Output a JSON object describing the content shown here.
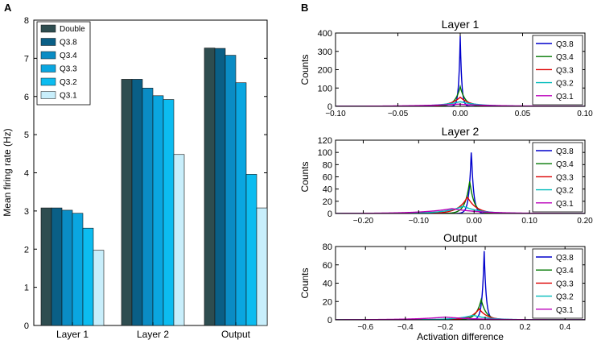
{
  "colors": {
    "bars": [
      "#2e4d50",
      "#0a5f86",
      "#0a8cc4",
      "#0aa6e0",
      "#0cbcf0",
      "#c8eefb"
    ],
    "lines": [
      "#0000cc",
      "#007700",
      "#dd0000",
      "#00bbbb",
      "#bb00bb"
    ]
  },
  "chart_data": [
    {
      "id": "A",
      "panel_label": "A",
      "type": "bar",
      "title": "",
      "xlabel": "",
      "ylabel": "Mean firing rate (Hz)",
      "ylim": [
        0,
        8
      ],
      "yticks": [
        "0",
        "1",
        "2",
        "3",
        "4",
        "5",
        "6",
        "7",
        "8"
      ],
      "categories": [
        "Layer 1",
        "Layer 2",
        "Output"
      ],
      "legend_position": "top-left",
      "series": [
        {
          "name": "Double",
          "values": [
            3.08,
            6.45,
            7.27
          ]
        },
        {
          "name": "Q3.8",
          "values": [
            3.08,
            6.45,
            7.26
          ]
        },
        {
          "name": "Q3.4",
          "values": [
            3.02,
            6.22,
            7.08
          ]
        },
        {
          "name": "Q3.3",
          "values": [
            2.94,
            6.02,
            6.36
          ]
        },
        {
          "name": "Q3.2",
          "values": [
            2.55,
            5.92,
            3.96
          ]
        },
        {
          "name": "Q3.1",
          "values": [
            1.97,
            4.48,
            3.08
          ]
        }
      ]
    },
    {
      "id": "B1",
      "panel_label": "B",
      "type": "line",
      "title": "Layer 1",
      "xlabel": "",
      "ylabel": "Counts",
      "xlim": [
        -0.1,
        0.1
      ],
      "ylim": [
        0,
        400
      ],
      "xticks": [
        -0.1,
        -0.05,
        0,
        0.05,
        0.1
      ],
      "xtick_labels": [
        "−0.10",
        "−0.05",
        "0.00",
        "0.05",
        "0.10"
      ],
      "yticks": [
        0,
        100,
        200,
        300,
        400
      ],
      "ytick_labels": [
        "0",
        "100",
        "200",
        "300",
        "400"
      ],
      "legend_position": "top-right",
      "series": [
        {
          "name": "Q3.8",
          "center": 0.0,
          "peak": 385,
          "width": 0.0012
        },
        {
          "name": "Q3.4",
          "center": 0.0,
          "peak": 108,
          "width": 0.004
        },
        {
          "name": "Q3.3",
          "center": 0.0,
          "peak": 50,
          "width": 0.008
        },
        {
          "name": "Q3.2",
          "center": 0.0,
          "peak": 25,
          "width": 0.016
        },
        {
          "name": "Q3.1",
          "center": -0.002,
          "peak": 12,
          "width": 0.03
        }
      ]
    },
    {
      "id": "B2",
      "panel_label": "",
      "type": "line",
      "title": "Layer 2",
      "xlabel": "",
      "ylabel": "Counts",
      "xlim": [
        -0.25,
        0.2
      ],
      "ylim": [
        0,
        120
      ],
      "xticks": [
        -0.2,
        -0.1,
        0,
        0.1,
        0.2
      ],
      "xtick_labels": [
        "−0.20",
        "−0.10",
        "0.00",
        "0.10",
        "0.20"
      ],
      "yticks": [
        0,
        20,
        40,
        60,
        80,
        100,
        120
      ],
      "ytick_labels": [
        "0",
        "20",
        "40",
        "60",
        "80",
        "100",
        "120"
      ],
      "legend_position": "top-right",
      "series": [
        {
          "name": "Q3.8",
          "center": -0.005,
          "peak": 105,
          "width": 0.004
        },
        {
          "name": "Q3.4",
          "center": -0.008,
          "peak": 53,
          "width": 0.008
        },
        {
          "name": "Q3.3",
          "center": -0.012,
          "peak": 27,
          "width": 0.016
        },
        {
          "name": "Q3.2",
          "center": -0.02,
          "peak": 12,
          "width": 0.03
        },
        {
          "name": "Q3.1",
          "center": -0.04,
          "peak": 8,
          "width": 0.05
        }
      ]
    },
    {
      "id": "B3",
      "panel_label": "",
      "type": "line",
      "title": "Output",
      "xlabel": "Activation difference",
      "ylabel": "Counts",
      "xlim": [
        -0.75,
        0.5
      ],
      "ylim": [
        0,
        80
      ],
      "xticks": [
        -0.6,
        -0.4,
        -0.2,
        0,
        0.2,
        0.4
      ],
      "xtick_labels": [
        "−0.6",
        "−0.4",
        "−0.2",
        "0.0",
        "0.2",
        "0.4"
      ],
      "yticks": [
        0,
        20,
        40,
        60,
        80
      ],
      "ytick_labels": [
        "0",
        "20",
        "40",
        "60",
        "80"
      ],
      "legend_position": "top-right",
      "series": [
        {
          "name": "Q3.8",
          "center": -0.005,
          "peak": 75,
          "width": 0.01
        },
        {
          "name": "Q3.4",
          "center": -0.02,
          "peak": 22,
          "width": 0.025
        },
        {
          "name": "Q3.3",
          "center": -0.03,
          "peak": 12,
          "width": 0.04
        },
        {
          "name": "Q3.2",
          "center": -0.06,
          "peak": 5,
          "width": 0.08
        },
        {
          "name": "Q3.1",
          "center": -0.2,
          "peak": 3,
          "width": 0.15
        }
      ]
    }
  ]
}
